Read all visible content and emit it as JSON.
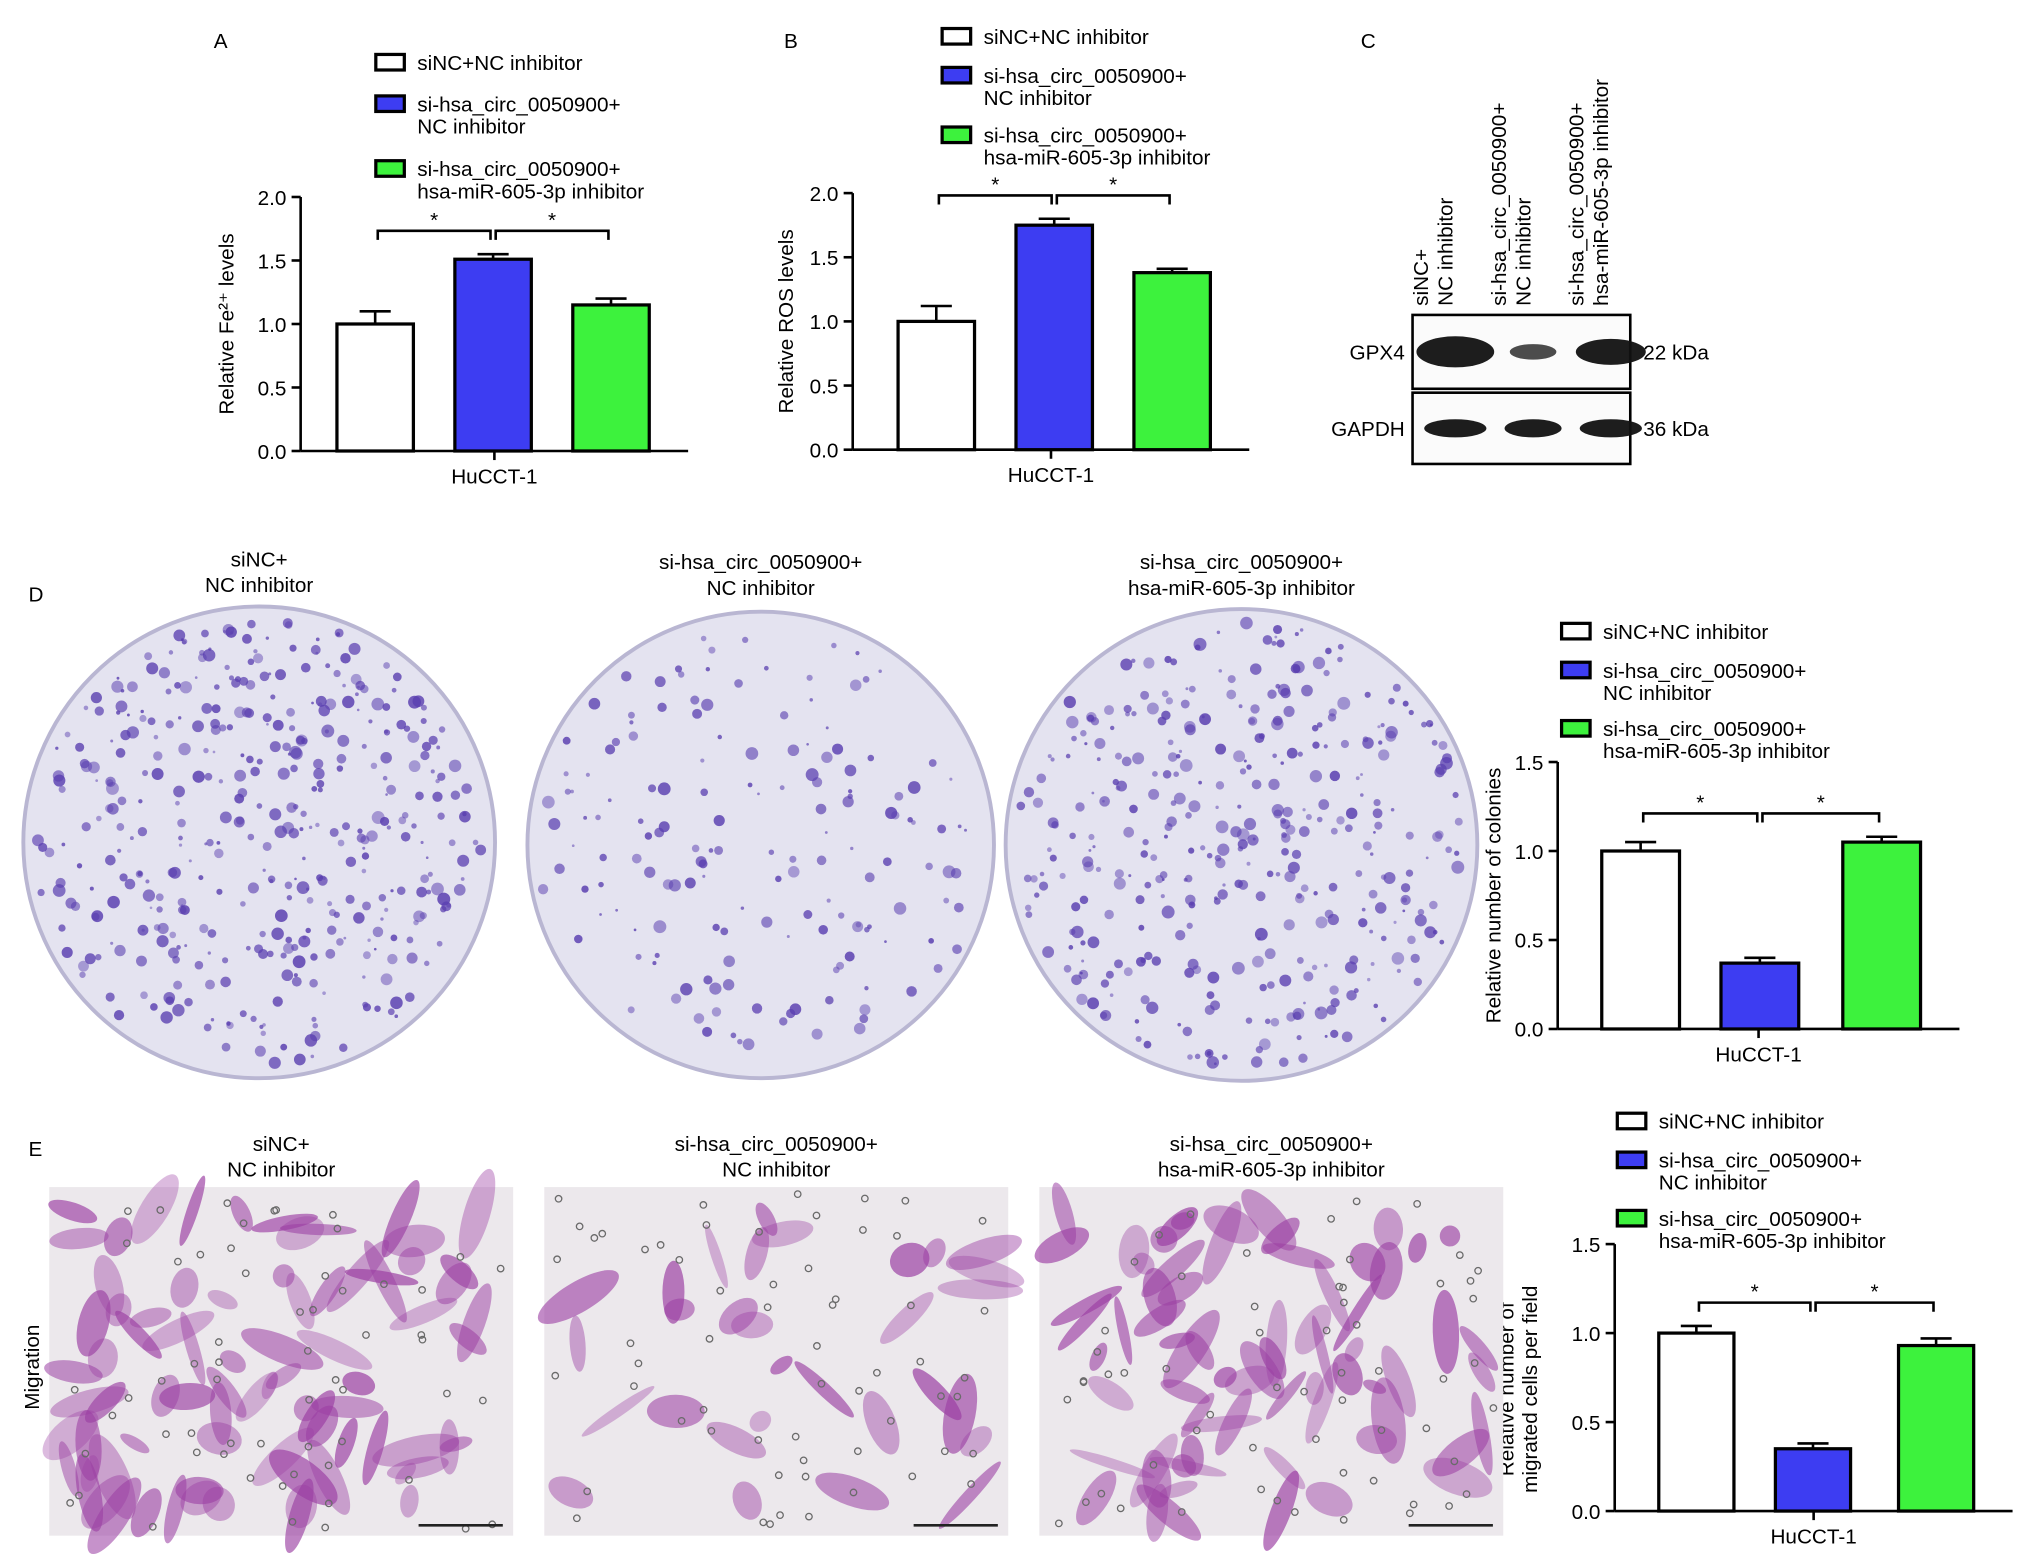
{
  "chart_data": [
    {
      "type": "bar",
      "ylabel": "Relative Fe²⁺ levels",
      "xlabel": "HuCCT-1",
      "ylim": [
        0,
        2
      ],
      "yticks": [
        {
          "value": 0,
          "label": "0.0"
        },
        0.5,
        {
          "value": 1,
          "label": "1.0"
        },
        1.5,
        {
          "value": 2,
          "label": "2.0"
        }
      ],
      "series": [
        {
          "name": "siNC+NC inhibitor",
          "color": "#ffffff",
          "values": [
            1.0
          ],
          "errors": [
            0.1
          ]
        },
        {
          "name": "si-hsa_circ_0050900+\nNC inhibitor",
          "color": "#3d3df2",
          "values": [
            1.51
          ],
          "errors": [
            0.04
          ]
        },
        {
          "name": "si-hsa_circ_0050900+\nhsa-miR-605-3p inhibitor",
          "color": "#3df23d",
          "values": [
            1.15
          ],
          "errors": [
            0.05
          ]
        }
      ],
      "annotations": [
        "*",
        "*"
      ]
    },
    {
      "type": "bar",
      "ylabel": "Relative ROS levels",
      "xlabel": "HuCCT-1",
      "ylim": [
        0,
        2
      ],
      "yticks": [
        {
          "value": 0,
          "label": "0.0"
        },
        0.5,
        {
          "value": 1,
          "label": "1.0"
        },
        1.5,
        {
          "value": 2,
          "label": "2.0"
        }
      ],
      "series": [
        {
          "name": "siNC+NC inhibitor",
          "color": "#ffffff",
          "values": [
            1.0
          ],
          "errors": [
            0.12
          ]
        },
        {
          "name": "si-hsa_circ_0050900+\nNC inhibitor",
          "color": "#3d3df2",
          "values": [
            1.75
          ],
          "errors": [
            0.05
          ]
        },
        {
          "name": "si-hsa_circ_0050900+\nhsa-miR-605-3p inhibitor",
          "color": "#3df23d",
          "values": [
            1.38
          ],
          "errors": [
            0.03
          ]
        }
      ],
      "annotations": [
        "*",
        "*"
      ]
    },
    {
      "type": "bar",
      "ylabel": "Relative number of colonies",
      "xlabel": "HuCCT-1",
      "ylim": [
        0,
        1.5
      ],
      "yticks": [
        {
          "value": 0,
          "label": "0.0"
        },
        0.5,
        {
          "value": 1,
          "label": "1.0"
        },
        1.5
      ],
      "series": [
        {
          "name": "siNC+NC inhibitor",
          "color": "#ffffff",
          "values": [
            1.0
          ],
          "errors": [
            0.05
          ]
        },
        {
          "name": "si-hsa_circ_0050900+\nNC inhibitor",
          "color": "#3d3df2",
          "values": [
            0.37
          ],
          "errors": [
            0.03
          ]
        },
        {
          "name": "si-hsa_circ_0050900+\nhsa-miR-605-3p inhibitor",
          "color": "#3df23d",
          "values": [
            1.05
          ],
          "errors": [
            0.03
          ]
        }
      ],
      "annotations": [
        "*",
        "*"
      ]
    },
    {
      "type": "bar",
      "ylabel": "Relative number of\nmigrated cells per field",
      "xlabel": "HuCCT-1",
      "ylim": [
        0,
        1.5
      ],
      "yticks": [
        {
          "value": 0,
          "label": "0.0"
        },
        0.5,
        {
          "value": 1,
          "label": "1.0"
        },
        1.5
      ],
      "series": [
        {
          "name": "siNC+NC inhibitor",
          "color": "#ffffff",
          "values": [
            1.0
          ],
          "errors": [
            0.04
          ]
        },
        {
          "name": "si-hsa_circ_0050900+\nNC inhibitor",
          "color": "#3d3df2",
          "values": [
            0.35
          ],
          "errors": [
            0.03
          ]
        },
        {
          "name": "si-hsa_circ_0050900+\nhsa-miR-605-3p inhibitor",
          "color": "#3df23d",
          "values": [
            0.93
          ],
          "errors": [
            0.04
          ]
        }
      ],
      "annotations": [
        "*",
        "*"
      ]
    }
  ],
  "panel_labels": [
    "A",
    "B",
    "C",
    "D",
    "E"
  ],
  "blot": {
    "lanes": [
      "siNC+\nNC inhibitor",
      "si-hsa_circ_0050900+\nNC inhibitor",
      "si-hsa_circ_0050900+\nhsa-miR-605-3p inhibitor"
    ],
    "proteins": [
      "GPX4",
      "GAPDH"
    ],
    "sizes": [
      "22 kDa",
      "36 kDa"
    ]
  },
  "colony": {
    "titles": [
      "siNC+\nNC inhibitor",
      "si-hsa_circ_0050900+\nNC inhibitor",
      "si-hsa_circ_0050900+\nhsa-miR-605-3p inhibitor"
    ]
  },
  "migration": {
    "row_label": "Migration",
    "titles": [
      "siNC+\nNC inhibitor",
      "si-hsa_circ_0050900+\nNC inhibitor",
      "si-hsa_circ_0050900+\nhsa-miR-605-3p inhibitor"
    ]
  }
}
